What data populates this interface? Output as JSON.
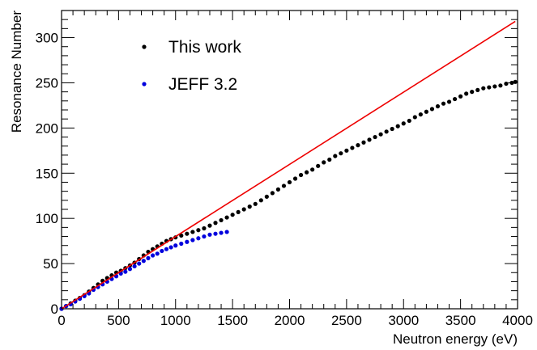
{
  "chart_data": {
    "type": "scatter",
    "xlabel": "Neutron energy (eV)",
    "ylabel": "Resonance Number",
    "xlim": [
      0,
      4000
    ],
    "ylim": [
      0,
      330
    ],
    "x_ticks": [
      0,
      500,
      1000,
      1500,
      2000,
      2500,
      3000,
      3500,
      4000
    ],
    "y_ticks": [
      0,
      50,
      100,
      150,
      200,
      250,
      300
    ],
    "grid": false,
    "legend_position": "top-left",
    "series": [
      {
        "name": "This work",
        "kind": "scatter",
        "color": "#000000",
        "points": [
          [
            0,
            0
          ],
          [
            40,
            3
          ],
          [
            80,
            6
          ],
          [
            120,
            9
          ],
          [
            160,
            12
          ],
          [
            200,
            15
          ],
          [
            240,
            19
          ],
          [
            280,
            23
          ],
          [
            320,
            27
          ],
          [
            360,
            31
          ],
          [
            400,
            34
          ],
          [
            440,
            37
          ],
          [
            480,
            40
          ],
          [
            520,
            42
          ],
          [
            560,
            45
          ],
          [
            600,
            48
          ],
          [
            640,
            51
          ],
          [
            680,
            55
          ],
          [
            720,
            59
          ],
          [
            760,
            63
          ],
          [
            800,
            66
          ],
          [
            840,
            69
          ],
          [
            880,
            72
          ],
          [
            920,
            75
          ],
          [
            960,
            77
          ],
          [
            1000,
            79
          ],
          [
            1050,
            81
          ],
          [
            1100,
            83
          ],
          [
            1150,
            85
          ],
          [
            1200,
            87
          ],
          [
            1250,
            89
          ],
          [
            1300,
            92
          ],
          [
            1350,
            95
          ],
          [
            1400,
            98
          ],
          [
            1450,
            101
          ],
          [
            1500,
            104
          ],
          [
            1550,
            107
          ],
          [
            1600,
            110
          ],
          [
            1650,
            113
          ],
          [
            1700,
            116
          ],
          [
            1750,
            120
          ],
          [
            1800,
            124
          ],
          [
            1850,
            128
          ],
          [
            1900,
            132
          ],
          [
            1950,
            136
          ],
          [
            2000,
            140
          ],
          [
            2050,
            144
          ],
          [
            2100,
            148
          ],
          [
            2150,
            151
          ],
          [
            2200,
            154
          ],
          [
            2250,
            158
          ],
          [
            2300,
            162
          ],
          [
            2350,
            165
          ],
          [
            2400,
            169
          ],
          [
            2450,
            172
          ],
          [
            2500,
            175
          ],
          [
            2550,
            178
          ],
          [
            2600,
            181
          ],
          [
            2650,
            184
          ],
          [
            2700,
            187
          ],
          [
            2750,
            190
          ],
          [
            2800,
            193
          ],
          [
            2850,
            196
          ],
          [
            2900,
            199
          ],
          [
            2950,
            202
          ],
          [
            3000,
            205
          ],
          [
            3050,
            208
          ],
          [
            3100,
            212
          ],
          [
            3150,
            215
          ],
          [
            3200,
            218
          ],
          [
            3250,
            221
          ],
          [
            3300,
            224
          ],
          [
            3350,
            227
          ],
          [
            3400,
            229
          ],
          [
            3450,
            232
          ],
          [
            3500,
            235
          ],
          [
            3550,
            238
          ],
          [
            3600,
            240
          ],
          [
            3650,
            242
          ],
          [
            3700,
            244
          ],
          [
            3750,
            245
          ],
          [
            3800,
            246
          ],
          [
            3850,
            247
          ],
          [
            3900,
            249
          ],
          [
            3950,
            250
          ],
          [
            3980,
            251
          ]
        ]
      },
      {
        "name": "JEFF 3.2",
        "kind": "scatter",
        "color": "#0000dd",
        "points": [
          [
            0,
            0
          ],
          [
            40,
            3
          ],
          [
            80,
            5
          ],
          [
            120,
            8
          ],
          [
            160,
            11
          ],
          [
            200,
            14
          ],
          [
            240,
            17
          ],
          [
            280,
            21
          ],
          [
            320,
            24
          ],
          [
            360,
            27
          ],
          [
            400,
            30
          ],
          [
            440,
            33
          ],
          [
            480,
            36
          ],
          [
            520,
            39
          ],
          [
            560,
            41
          ],
          [
            600,
            44
          ],
          [
            640,
            47
          ],
          [
            680,
            50
          ],
          [
            720,
            53
          ],
          [
            760,
            56
          ],
          [
            800,
            59
          ],
          [
            840,
            61
          ],
          [
            880,
            64
          ],
          [
            920,
            66
          ],
          [
            960,
            68
          ],
          [
            1000,
            70
          ],
          [
            1050,
            72
          ],
          [
            1100,
            74
          ],
          [
            1150,
            76
          ],
          [
            1200,
            78
          ],
          [
            1250,
            80
          ],
          [
            1300,
            82
          ],
          [
            1350,
            83
          ],
          [
            1400,
            84
          ],
          [
            1450,
            85
          ]
        ]
      },
      {
        "name": "",
        "kind": "line",
        "color": "#ee0000",
        "points": [
          [
            0,
            0
          ],
          [
            3980,
            318
          ]
        ]
      }
    ]
  }
}
